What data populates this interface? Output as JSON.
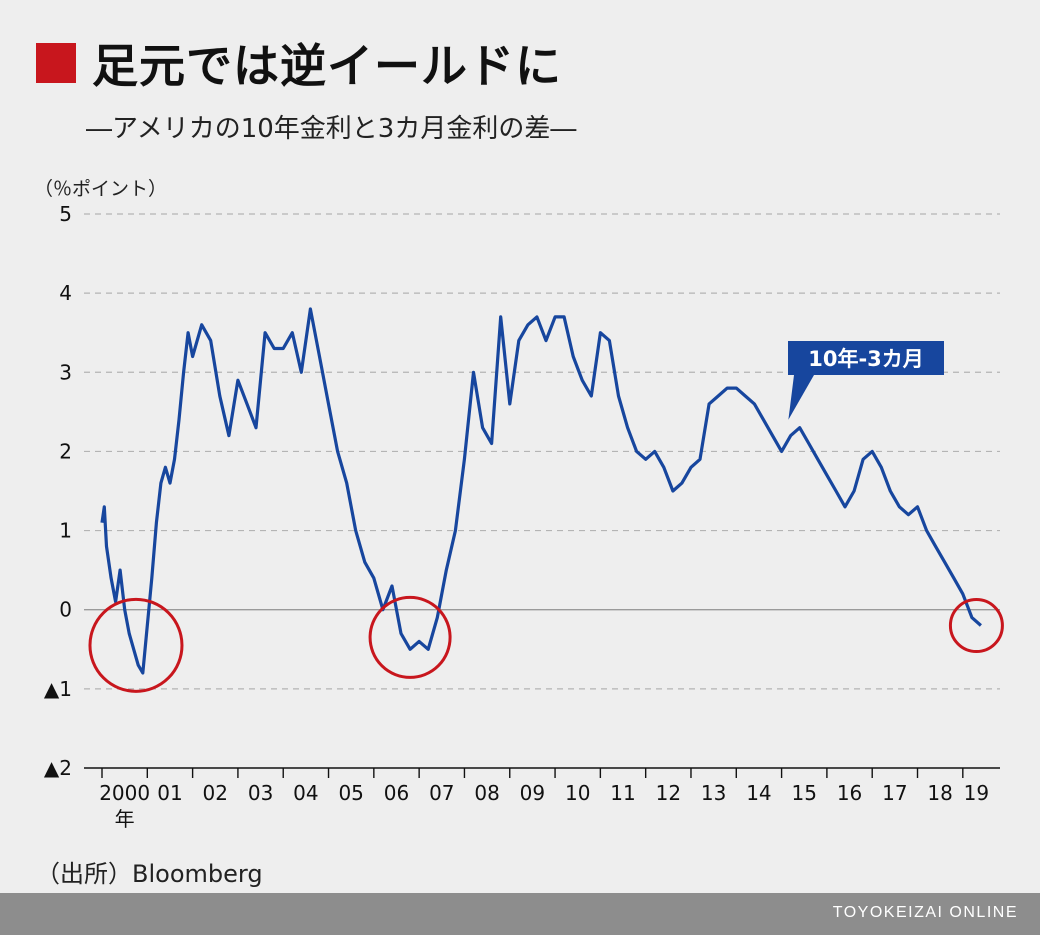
{
  "title": "足元では逆イールドに",
  "subtitle": "―アメリカの10年金利と3カ月金利の差―",
  "unit": "（％ポイント）",
  "source": "（出所）Bloomberg",
  "brand": "TOYOKEIZAI ONLINE",
  "colors": {
    "title_square": "#c8161d",
    "line": "#17469e",
    "circle": "#c8161d",
    "label_bg": "#17469e",
    "footer": "#8d8d8d"
  },
  "chart_data": {
    "type": "line",
    "title": "足元では逆イールドに",
    "subtitle": "―アメリカの10年金利と3カ月金利の差―",
    "ylabel": "（％ポイント）",
    "xlabel": "",
    "ylim": [
      -2,
      5
    ],
    "xlim": [
      2000,
      2019.6
    ],
    "yticks": [
      {
        "value": 5,
        "label": "5"
      },
      {
        "value": 4,
        "label": "4"
      },
      {
        "value": 3,
        "label": "3"
      },
      {
        "value": 2,
        "label": "2"
      },
      {
        "value": 1,
        "label": "1"
      },
      {
        "value": 0,
        "label": "0"
      },
      {
        "value": -1,
        "label": "▲1"
      },
      {
        "value": -2,
        "label": "▲2"
      }
    ],
    "xticks": [
      {
        "value": 2000,
        "label": "2000",
        "sub": "年"
      },
      {
        "value": 2001,
        "label": "01"
      },
      {
        "value": 2002,
        "label": "02"
      },
      {
        "value": 2003,
        "label": "03"
      },
      {
        "value": 2004,
        "label": "04"
      },
      {
        "value": 2005,
        "label": "05"
      },
      {
        "value": 2006,
        "label": "06"
      },
      {
        "value": 2007,
        "label": "07"
      },
      {
        "value": 2008,
        "label": "08"
      },
      {
        "value": 2009,
        "label": "09"
      },
      {
        "value": 2010,
        "label": "10"
      },
      {
        "value": 2011,
        "label": "11"
      },
      {
        "value": 2012,
        "label": "12"
      },
      {
        "value": 2013,
        "label": "13"
      },
      {
        "value": 2014,
        "label": "14"
      },
      {
        "value": 2015,
        "label": "15"
      },
      {
        "value": 2016,
        "label": "16"
      },
      {
        "value": 2017,
        "label": "17"
      },
      {
        "value": 2018,
        "label": "18"
      },
      {
        "value": 2019,
        "label": "19"
      }
    ],
    "grid": "dashed horizontal",
    "series": [
      {
        "name": "10年-3カ月",
        "x": [
          2000.0,
          2000.05,
          2000.1,
          2000.2,
          2000.3,
          2000.4,
          2000.5,
          2000.6,
          2000.7,
          2000.8,
          2000.9,
          2001.0,
          2001.1,
          2001.2,
          2001.3,
          2001.4,
          2001.5,
          2001.6,
          2001.7,
          2001.8,
          2001.9,
          2002.0,
          2002.2,
          2002.4,
          2002.6,
          2002.8,
          2003.0,
          2003.2,
          2003.4,
          2003.6,
          2003.8,
          2004.0,
          2004.2,
          2004.4,
          2004.6,
          2004.8,
          2005.0,
          2005.2,
          2005.4,
          2005.6,
          2005.8,
          2006.0,
          2006.2,
          2006.4,
          2006.6,
          2006.8,
          2007.0,
          2007.2,
          2007.4,
          2007.6,
          2007.8,
          2008.0,
          2008.2,
          2008.4,
          2008.6,
          2008.8,
          2009.0,
          2009.2,
          2009.4,
          2009.6,
          2009.8,
          2010.0,
          2010.2,
          2010.4,
          2010.6,
          2010.8,
          2011.0,
          2011.2,
          2011.4,
          2011.6,
          2011.8,
          2012.0,
          2012.2,
          2012.4,
          2012.6,
          2012.8,
          2013.0,
          2013.2,
          2013.4,
          2013.6,
          2013.8,
          2014.0,
          2014.2,
          2014.4,
          2014.6,
          2014.8,
          2015.0,
          2015.2,
          2015.4,
          2015.6,
          2015.8,
          2016.0,
          2016.2,
          2016.4,
          2016.6,
          2016.8,
          2017.0,
          2017.2,
          2017.4,
          2017.6,
          2017.8,
          2018.0,
          2018.2,
          2018.4,
          2018.6,
          2018.8,
          2019.0,
          2019.2,
          2019.4
        ],
        "y": [
          1.1,
          1.3,
          0.8,
          0.4,
          0.1,
          0.5,
          0.0,
          -0.3,
          -0.5,
          -0.7,
          -0.8,
          -0.2,
          0.4,
          1.1,
          1.6,
          1.8,
          1.6,
          1.9,
          2.4,
          3.0,
          3.5,
          3.2,
          3.6,
          3.4,
          2.7,
          2.2,
          2.9,
          2.6,
          2.3,
          3.5,
          3.3,
          3.3,
          3.5,
          3.0,
          3.8,
          3.2,
          2.6,
          2.0,
          1.6,
          1.0,
          0.6,
          0.4,
          0.0,
          0.3,
          -0.3,
          -0.5,
          -0.4,
          -0.5,
          -0.1,
          0.5,
          1.0,
          1.9,
          3.0,
          2.3,
          2.1,
          3.7,
          2.6,
          3.4,
          3.6,
          3.7,
          3.4,
          3.7,
          3.7,
          3.2,
          2.9,
          2.7,
          3.5,
          3.4,
          2.7,
          2.3,
          2.0,
          1.9,
          2.0,
          1.8,
          1.5,
          1.6,
          1.8,
          1.9,
          2.6,
          2.7,
          2.8,
          2.8,
          2.7,
          2.6,
          2.4,
          2.2,
          2.0,
          2.2,
          2.3,
          2.1,
          1.9,
          1.7,
          1.5,
          1.3,
          1.5,
          1.9,
          2.0,
          1.8,
          1.5,
          1.3,
          1.2,
          1.3,
          1.0,
          0.8,
          0.6,
          0.4,
          0.2,
          -0.1,
          -0.2
        ]
      }
    ],
    "legend": "series label box near the 2015 peak",
    "annotations": "red circles mark the inverted periods of 2000, 2006-07 and 2019"
  }
}
